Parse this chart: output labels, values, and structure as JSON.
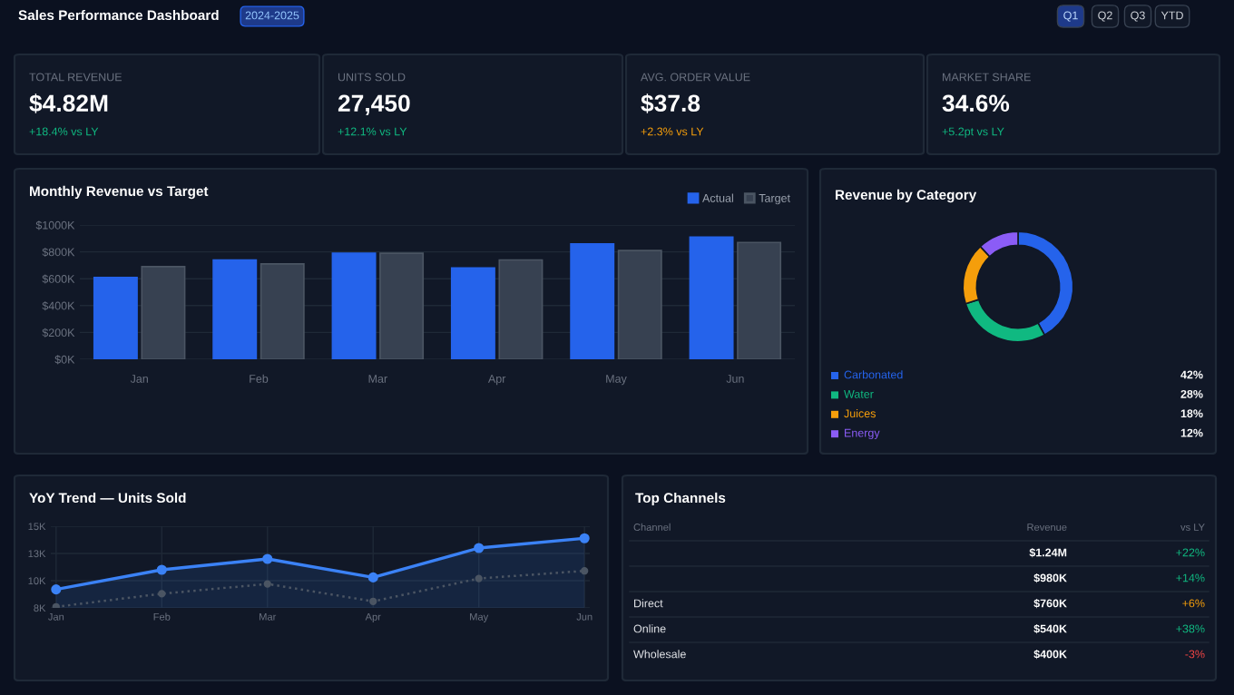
{
  "chart_data": [
    {
      "type": "other",
      "title": "Sales Performance Dashboard",
      "annotations": [
        "2024-2025",
        "Q1",
        "Q2",
        "Q3",
        "YTD"
      ]
    },
    {
      "type": "other",
      "title": "TOTAL REVENUE",
      "annotations": [
        "$4.82M",
        "+18.4% vs LY"
      ],
      "colors": [
        "#ffffff",
        "#10b981"
      ]
    },
    {
      "type": "other",
      "title": "UNITS SOLD",
      "annotations": [
        "27,450",
        "+12.1% vs LY"
      ],
      "colors": [
        "#ffffff",
        "#10b981"
      ]
    },
    {
      "type": "other",
      "title": "AVG. ORDER VALUE",
      "annotations": [
        "$37.8",
        "+2.3% vs LY"
      ],
      "colors": [
        "#ffffff",
        "#f59e0b"
      ]
    },
    {
      "type": "other",
      "title": "MARKET SHARE",
      "annotations": [
        "34.6%",
        "+5.2pt vs LY"
      ],
      "colors": [
        "#ffffff",
        "#10b981"
      ]
    },
    {
      "type": "bar",
      "title": "Monthly Revenue vs Target",
      "categories": [
        "Jan",
        "Feb",
        "Mar",
        "Apr",
        "May",
        "Jun"
      ],
      "series": [
        {
          "name": "Actual",
          "color": "#2563eb",
          "values": [
            610,
            740,
            790,
            680,
            860,
            910
          ]
        },
        {
          "name": "Target",
          "color": "#374151",
          "values": [
            690,
            710,
            790,
            740,
            810,
            870
          ]
        }
      ],
      "ylim": [
        0,
        1000
      ],
      "yticks": [
        {
          "value": 0,
          "label": "$0K"
        },
        {
          "value": 200,
          "label": "$200K"
        },
        {
          "value": 400,
          "label": "$400K"
        },
        {
          "value": 600,
          "label": "$600K"
        },
        {
          "value": 800,
          "label": "$800K"
        },
        {
          "value": 1000,
          "label": "$1000K"
        }
      ],
      "grid": "y",
      "legend": "top right"
    },
    {
      "type": "donut",
      "title": "Revenue by Category",
      "categories": [
        "Carbonated",
        "Water",
        "Juices",
        "Energy"
      ],
      "values": [
        42,
        28,
        18,
        12
      ],
      "colors": [
        "#2563eb",
        "#10b981",
        "#f59e0b",
        "#8b5cf6"
      ],
      "value_labels": [
        "42%",
        "28%",
        "18%",
        "12%"
      ],
      "legend": "bottom"
    },
    {
      "type": "line",
      "title": "YoY Trend — Units Sold",
      "categories": [
        "Jan",
        "Feb",
        "Mar",
        "Apr",
        "May",
        "Jun"
      ],
      "series": [
        {
          "type": "area",
          "color": "#3b82f6",
          "values": [
            9.2,
            11.0,
            12.0,
            10.3,
            13.0,
            13.9
          ],
          "marker": "circle",
          "line_style": "solid"
        },
        {
          "type": "line",
          "color": "#4b5563",
          "values": [
            7.6,
            8.8,
            9.7,
            8.1,
            10.2,
            10.9
          ],
          "marker": "circle",
          "line_style": "dotted"
        }
      ],
      "ylim": [
        7.5,
        15
      ],
      "yticks": [
        {
          "value": 7.5,
          "label": "8K"
        },
        {
          "value": 10,
          "label": "10K"
        },
        {
          "value": 12.5,
          "label": "13K"
        },
        {
          "value": 15,
          "label": "15K"
        }
      ],
      "grid": true
    },
    {
      "type": "other",
      "title": "Top Channels",
      "categories": [
        null,
        null,
        "Direct",
        "Online",
        "Wholesale"
      ],
      "annotations": [
        "Channel",
        "Revenue",
        "vs LY",
        "$1.24M",
        "+22%",
        "$980K",
        "+14%",
        "$760K",
        "+6%",
        "$540K",
        "+38%",
        "$400K",
        "-3%"
      ],
      "colors": [
        "#10b981",
        "#10b981",
        "#f59e0b",
        "#10b981",
        "#ef4444"
      ]
    }
  ]
}
